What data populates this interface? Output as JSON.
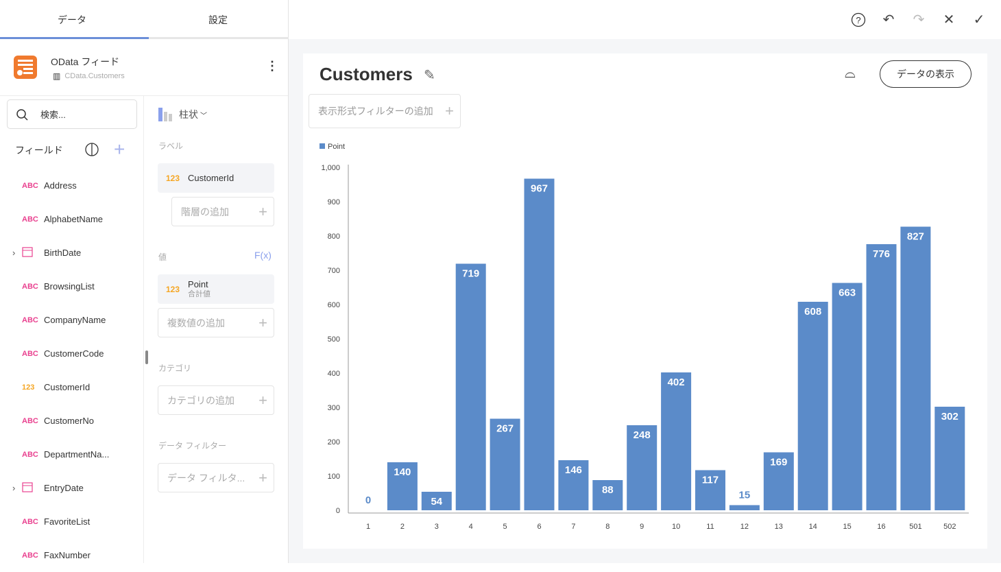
{
  "tabs": [
    "データ",
    "設定"
  ],
  "source": {
    "title": "OData フィード",
    "table": "CData.Customers"
  },
  "search": {
    "placeholder": "検索..."
  },
  "fields_header": "フィールド",
  "fields": [
    {
      "type": "ABC",
      "name": "Address"
    },
    {
      "type": "ABC",
      "name": "AlphabetName"
    },
    {
      "type": "date",
      "name": "BirthDate",
      "expandable": true
    },
    {
      "type": "ABC",
      "name": "BrowsingList"
    },
    {
      "type": "ABC",
      "name": "CompanyName"
    },
    {
      "type": "ABC",
      "name": "CustomerCode"
    },
    {
      "type": "123",
      "name": "CustomerId"
    },
    {
      "type": "ABC",
      "name": "CustomerNo"
    },
    {
      "type": "ABC",
      "name": "DepartmentNa..."
    },
    {
      "type": "date",
      "name": "EntryDate",
      "expandable": true
    },
    {
      "type": "ABC",
      "name": "FavoriteList"
    },
    {
      "type": "ABC",
      "name": "FaxNumber"
    }
  ],
  "config": {
    "chart_type": "柱状",
    "label_section": "ラベル",
    "label_field": {
      "type": "123",
      "name": "CustomerId"
    },
    "add_hierarchy": "階層の追加",
    "value_section": "値",
    "fx": "F(x)",
    "value_field": {
      "type": "123",
      "name": "Point",
      "agg": "合計値"
    },
    "add_values": "複数値の追加",
    "category_section": "カテゴリ",
    "add_category": "カテゴリの追加",
    "filter_section": "データ フィルター",
    "add_filter": "データ フィルタ..."
  },
  "toolbar": {
    "help": "?",
    "undo": "↶",
    "redo": "↷",
    "close": "✕",
    "confirm": "✓"
  },
  "card": {
    "title": "Customers",
    "show_data": "データの表示",
    "add_filter": "表示形式フィルターの追加"
  },
  "colors": {
    "accent": "#6b8fd8",
    "bar": "#5b8bc9",
    "orange": "#f07a2e",
    "pink": "#e9418f"
  },
  "chart_data": {
    "type": "bar",
    "legend": "Point",
    "legend_position": "top-left",
    "categories": [
      "1",
      "2",
      "3",
      "4",
      "5",
      "6",
      "7",
      "8",
      "9",
      "10",
      "11",
      "12",
      "13",
      "14",
      "15",
      "16",
      "501",
      "502"
    ],
    "values": [
      0,
      140,
      54,
      719,
      267,
      967,
      146,
      88,
      248,
      402,
      117,
      15,
      169,
      608,
      663,
      776,
      827,
      302
    ],
    "yticks": [
      "0",
      "100",
      "200",
      "300",
      "400",
      "500",
      "600",
      "700",
      "800",
      "900",
      "1,000"
    ],
    "ylim": [
      0,
      1000
    ]
  }
}
